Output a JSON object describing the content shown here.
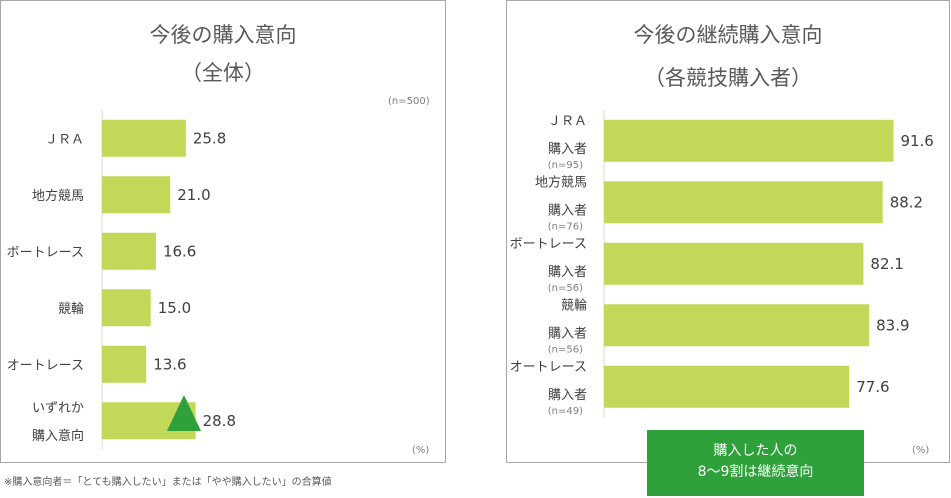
{
  "chart_data": [
    {
      "type": "bar",
      "orientation": "horizontal",
      "title": "今後の購入意向",
      "subtitle": "（全体）",
      "sample_note": "(n=500)",
      "unit_note": "(%)",
      "categories": [
        {
          "lines": [
            "ＪＲＡ"
          ],
          "n": ""
        },
        {
          "lines": [
            "地方競馬"
          ],
          "n": ""
        },
        {
          "lines": [
            "ボートレース"
          ],
          "n": ""
        },
        {
          "lines": [
            "競輪"
          ],
          "n": ""
        },
        {
          "lines": [
            "オートレース"
          ],
          "n": ""
        },
        {
          "lines": [
            "いずれか",
            "購入意向"
          ],
          "n": ""
        }
      ],
      "values": [
        25.8,
        21.0,
        16.6,
        15.0,
        13.6,
        28.8
      ],
      "value_labels": [
        "25.8",
        "21.0",
        "16.6",
        "15.0",
        "13.6",
        "28.8"
      ],
      "xlim": [
        0,
        100
      ]
    },
    {
      "type": "bar",
      "orientation": "horizontal",
      "title": "今後の継続購入意向",
      "subtitle": "（各競技購入者）",
      "sample_note": "",
      "unit_note": "(%)",
      "categories": [
        {
          "lines": [
            "ＪＲＡ",
            "購入者"
          ],
          "n": "(n=95)"
        },
        {
          "lines": [
            "地方競馬",
            "購入者"
          ],
          "n": "(n=76)"
        },
        {
          "lines": [
            "ボートレース",
            "購入者"
          ],
          "n": "(n=56)"
        },
        {
          "lines": [
            "競輪",
            "購入者"
          ],
          "n": "(n=56)"
        },
        {
          "lines": [
            "オートレース",
            "購入者"
          ],
          "n": "(n=49)"
        }
      ],
      "values": [
        91.6,
        88.2,
        82.1,
        83.9,
        77.6
      ],
      "value_labels": [
        "91.6",
        "88.2",
        "82.1",
        "83.9",
        "77.6"
      ],
      "xlim": [
        0,
        100
      ]
    }
  ],
  "callout": {
    "line1": "購入した人の",
    "line2": "8～9割は継続意向"
  },
  "footnote": "※購入意向者＝「とても購入したい」または「やや購入したい」の合算値",
  "colors": {
    "bar": "#c2d859",
    "callout": "#2ea13a",
    "border": "#a6a6a6"
  }
}
